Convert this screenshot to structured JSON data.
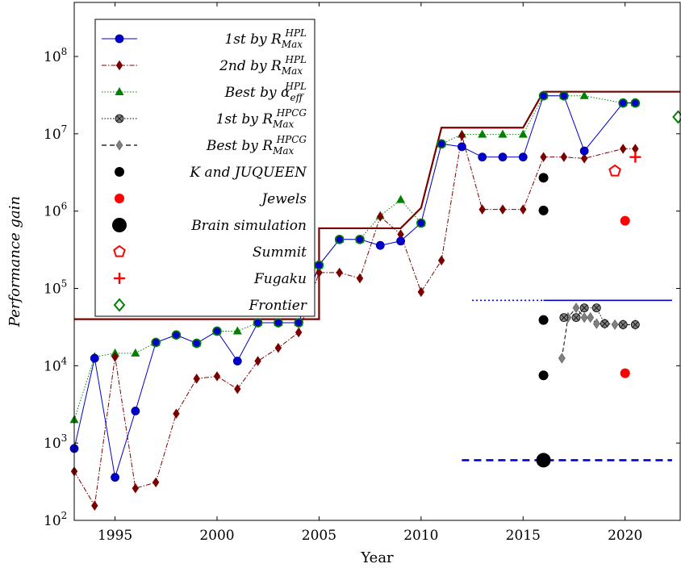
{
  "chart_data": {
    "type": "line",
    "title": "",
    "xlabel": "Year",
    "ylabel": "Performance gain",
    "xlim": [
      1993,
      2022.7
    ],
    "ylim": [
      100,
      500000000
    ],
    "yscale": "log",
    "xticks": [
      1995,
      2000,
      2005,
      2010,
      2015,
      2020
    ],
    "xtick_labels": [
      "1995",
      "2000",
      "2005",
      "2010",
      "2015",
      "2020"
    ],
    "yticks": [
      100,
      1000,
      10000,
      100000,
      1000000,
      10000000,
      100000000
    ],
    "ytick_labels": [
      {
        "base": "10",
        "exp": "2"
      },
      {
        "base": "10",
        "exp": "3"
      },
      {
        "base": "10",
        "exp": "4"
      },
      {
        "base": "10",
        "exp": "5"
      },
      {
        "base": "10",
        "exp": "6"
      },
      {
        "base": "10",
        "exp": "7"
      },
      {
        "base": "10",
        "exp": "8"
      }
    ],
    "legend_position": "top-left",
    "legend": [
      {
        "pre": "1st by R",
        "sup": "HPL",
        "sub": "Max",
        "key": "first_hpl"
      },
      {
        "pre": "2nd by R",
        "sup": "HPL",
        "sub": "Max",
        "key": "second_hpl"
      },
      {
        "pre": "Best by α",
        "sup": "HPL",
        "sub": "eff",
        "key": "best_alpha"
      },
      {
        "pre": "1st by R",
        "sup": "HPCG",
        "sub": "Max",
        "key": "first_hpcg"
      },
      {
        "pre": "Best by R",
        "sup": "HPCG",
        "sub": "Max",
        "key": "best_hpcg"
      },
      {
        "pre": "K and JUQUEEN",
        "key": "kjuqueen"
      },
      {
        "pre": "Jewels",
        "key": "jewels"
      },
      {
        "pre": "Brain simulation",
        "key": "brain"
      },
      {
        "pre": "Summit",
        "key": "summit"
      },
      {
        "pre": "Fugaku",
        "key": "fugaku"
      },
      {
        "pre": "Frontier",
        "key": "frontier"
      }
    ],
    "colors": {
      "blue": "#0000cc",
      "darkred": "#7a0000",
      "green": "#008000",
      "gray": "#808080",
      "black": "#000000",
      "red": "#ff0000"
    },
    "series": {
      "first_hpl": {
        "x": [
          1993,
          1994,
          1995,
          1996,
          1997,
          1998,
          1999,
          2000,
          2001,
          2002,
          2003,
          2004,
          2005,
          2006,
          2007,
          2008,
          2009,
          2010,
          2011,
          2012,
          2013,
          2014,
          2015,
          2016,
          2017,
          2018,
          2019.9,
          2020.5
        ],
        "y": [
          850,
          12500,
          360,
          2600,
          20000,
          25000,
          19500,
          28000,
          11500,
          36000,
          36000,
          36000,
          200000,
          430000,
          430000,
          360000,
          410000,
          700000,
          7400000,
          6800000,
          5000000,
          5000000,
          5000000,
          31000000,
          31000000,
          6000000,
          25000000,
          25000000
        ]
      },
      "second_hpl": {
        "x": [
          1993,
          1994,
          1995,
          1996,
          1997,
          1998,
          1999,
          2000,
          2001,
          2002,
          2003,
          2004,
          2005,
          2006,
          2007,
          2008,
          2009,
          2010,
          2011,
          2012,
          2013,
          2014,
          2015,
          2016,
          2017,
          2018,
          2019.9,
          2020.5
        ],
        "y": [
          430,
          155,
          13000,
          260,
          310,
          2400,
          6800,
          7300,
          5000,
          11500,
          17000,
          27000,
          160000,
          160000,
          135000,
          850000,
          500000,
          90000,
          230000,
          9500000,
          1050000,
          1050000,
          1050000,
          5000000,
          5000000,
          4800000,
          6400000,
          6400000
        ]
      },
      "best_alpha": {
        "x": [
          1993,
          1994,
          1995,
          1996,
          1997,
          1998,
          1999,
          2000,
          2001,
          2002,
          2003,
          2004,
          2005,
          2006,
          2007,
          2008,
          2009,
          2010,
          2011,
          2012,
          2013,
          2014,
          2015,
          2016,
          2017,
          2018,
          2019.9,
          2020.5
        ],
        "y": [
          2000,
          13000,
          14500,
          14500,
          20000,
          25000,
          19500,
          28000,
          28000,
          36000,
          36000,
          36000,
          200000,
          430000,
          430000,
          870000,
          1400000,
          700000,
          7400000,
          9800000,
          9800000,
          9800000,
          9800000,
          31000000,
          31000000,
          31000000,
          25000000,
          25000000
        ]
      },
      "rmax_envelope": {
        "x": [
          1993,
          2005,
          2005,
          2009,
          2010,
          2011,
          2015,
          2016,
          2022.7
        ],
        "y": [
          40000,
          40000,
          600000,
          600000,
          1100000,
          12000000,
          12000000,
          35000000,
          35000000
        ]
      },
      "first_hpcg": {
        "x": [
          2017,
          2017.6,
          2018,
          2018.6,
          2019,
          2019.9,
          2020.5
        ],
        "y": [
          42000,
          42000,
          56000,
          56000,
          35000,
          34000,
          34000
        ]
      },
      "best_hpcg": {
        "x": [
          2016.9,
          2017.2,
          2017.6,
          2018,
          2018.3,
          2018.6,
          2019,
          2019.5,
          2019.9,
          2020.5
        ],
        "y": [
          12500,
          42000,
          56000,
          42000,
          42000,
          35000,
          35000,
          34000,
          34000,
          34000
        ]
      },
      "kjuqueen": {
        "x": [
          2016,
          2016,
          2016,
          2016
        ],
        "y": [
          2700000,
          1020000,
          39000,
          7500
        ]
      },
      "jewels": {
        "x": [
          2020,
          2020
        ],
        "y": [
          750000,
          8000
        ]
      },
      "brain": {
        "x": [
          2016
        ],
        "y": [
          600
        ]
      },
      "summit": {
        "x": [
          2019.5
        ],
        "y": [
          3300000
        ]
      },
      "fugaku": {
        "x": [
          2020.5
        ],
        "y": [
          5000000
        ]
      },
      "frontier": {
        "x": [
          2022.6
        ],
        "y": [
          16500000
        ]
      },
      "level_lines": [
        {
          "style": "dotted",
          "x": [
            2012.5,
            2016
          ],
          "y": [
            70000,
            70000
          ]
        },
        {
          "style": "solid",
          "x": [
            2016,
            2022.3
          ],
          "y": [
            70000,
            70000
          ]
        },
        {
          "style": "dashed",
          "x": [
            2012,
            2022.3
          ],
          "y": [
            600,
            600
          ]
        }
      ]
    }
  }
}
